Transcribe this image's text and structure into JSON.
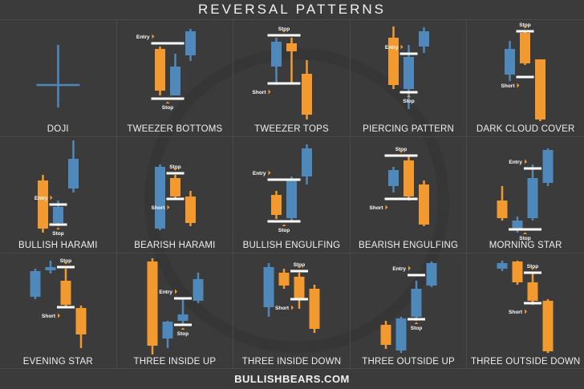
{
  "title": "REVERSAL PATTERNS",
  "footer": "BULLISHBEARS.COM",
  "colors": {
    "orange": "#f29a30",
    "blue": "#4f88bb",
    "line": "#ffffff",
    "arrow": "#f29a30"
  },
  "panels": [
    {
      "name": "DOJI",
      "doji": true,
      "candles": [
        {
          "color": "blue",
          "high": 107,
          "top": 57,
          "bottom": 57,
          "low": 29
        }
      ],
      "levels": []
    },
    {
      "name": "TWEEZER BOTTOMS",
      "candles": [
        {
          "color": "orange",
          "high": 105,
          "top": 102,
          "bottom": 50,
          "low": 44
        },
        {
          "color": "blue",
          "high": 96,
          "top": 80,
          "bottom": 44,
          "low": 44
        },
        {
          "color": "blue",
          "high": 127,
          "top": 124,
          "bottom": 94,
          "low": 87
        }
      ],
      "levels": [
        {
          "price": 109,
          "from": 0,
          "to": 1,
          "label": "Entry",
          "pos": "above"
        },
        {
          "price": 40,
          "from": 0,
          "to": 1,
          "label": "Stop",
          "pos": "below"
        }
      ]
    },
    {
      "name": "TWEEZER TOPS",
      "candles": [
        {
          "color": "blue",
          "high": 116,
          "top": 111,
          "bottom": 80,
          "low": 57
        },
        {
          "color": "orange",
          "high": 116,
          "top": 109,
          "bottom": 99,
          "low": 59
        },
        {
          "color": "orange",
          "high": 88,
          "top": 71,
          "bottom": 20,
          "low": 14
        }
      ],
      "levels": [
        {
          "price": 119,
          "from": 0,
          "to": 1,
          "label": "Stop",
          "pos": "above"
        },
        {
          "price": 59,
          "from": 0,
          "to": 1,
          "label": "Short",
          "pos": "below"
        }
      ]
    },
    {
      "name": "PIERCING PATTERN",
      "candles": [
        {
          "color": "orange",
          "high": 130,
          "top": 116,
          "bottom": 57,
          "low": 52
        },
        {
          "color": "blue",
          "high": 107,
          "top": 92,
          "bottom": 52,
          "low": 27
        },
        {
          "color": "blue",
          "high": 129,
          "top": 124,
          "bottom": 105,
          "low": 97
        }
      ],
      "levels": [
        {
          "price": 96,
          "from": 1,
          "to": 1,
          "label": "Entry",
          "pos": "above"
        },
        {
          "price": 48,
          "from": 1,
          "to": 1,
          "label": "Stop",
          "pos": "below"
        }
      ]
    },
    {
      "name": "DARK CLOUD COVER",
      "candles": [
        {
          "color": "blue",
          "high": 112,
          "top": 102,
          "bottom": 70,
          "low": 62
        },
        {
          "color": "orange",
          "high": 125,
          "top": 122,
          "bottom": 84,
          "low": 82
        },
        {
          "color": "orange",
          "high": 89,
          "top": 89,
          "bottom": 14,
          "low": 12
        }
      ],
      "levels": [
        {
          "price": 124,
          "from": 1,
          "to": 1,
          "label": "Stop",
          "pos": "above"
        },
        {
          "price": 67,
          "from": 1,
          "to": 1,
          "label": "Short",
          "pos": "below"
        }
      ]
    },
    {
      "name": "BULLISH HARAMI",
      "candles": [
        {
          "color": "orange",
          "high": 90,
          "top": 83,
          "bottom": 23,
          "low": 18
        },
        {
          "color": "blue",
          "high": 58,
          "top": 50,
          "bottom": 30,
          "low": 26
        },
        {
          "color": "blue",
          "high": 133,
          "top": 110,
          "bottom": 73,
          "low": 68
        }
      ],
      "levels": [
        {
          "price": 53,
          "from": 1,
          "to": 1,
          "label": "Entry",
          "pos": "above"
        },
        {
          "price": 28,
          "from": 1,
          "to": 1,
          "label": "Stop",
          "pos": "below"
        }
      ]
    },
    {
      "name": "BEARISH HARAMI",
      "candles": [
        {
          "color": "blue",
          "high": 103,
          "top": 100,
          "bottom": 23,
          "low": 21
        },
        {
          "color": "orange",
          "high": 90,
          "top": 86,
          "bottom": 63,
          "low": 60
        },
        {
          "color": "orange",
          "high": 70,
          "top": 63,
          "bottom": 30,
          "low": 26
        }
      ],
      "levels": [
        {
          "price": 92,
          "from": 1,
          "to": 1,
          "label": "Stop",
          "pos": "above"
        },
        {
          "price": 60,
          "from": 1,
          "to": 1,
          "label": "Short",
          "pos": "below"
        }
      ]
    },
    {
      "name": "BULLISH ENGULFING",
      "candles": [
        {
          "color": "orange",
          "high": 70,
          "top": 65,
          "bottom": 40,
          "low": 35
        },
        {
          "color": "blue",
          "high": 88,
          "top": 83,
          "bottom": 36,
          "low": 33
        },
        {
          "color": "blue",
          "high": 128,
          "top": 123,
          "bottom": 88,
          "low": 78
        }
      ],
      "levels": [
        {
          "price": 84,
          "from": 0,
          "to": 1,
          "label": "Entry",
          "pos": "above"
        },
        {
          "price": 32,
          "from": 0,
          "to": 1,
          "label": "Stop",
          "pos": "below"
        }
      ]
    },
    {
      "name": "BEARISH ENGULFING",
      "candles": [
        {
          "color": "blue",
          "high": 100,
          "top": 96,
          "bottom": 76,
          "low": 68
        },
        {
          "color": "orange",
          "high": 113,
          "top": 108,
          "bottom": 63,
          "low": 58
        },
        {
          "color": "orange",
          "high": 83,
          "top": 78,
          "bottom": 28,
          "low": 26
        }
      ],
      "levels": [
        {
          "price": 114,
          "from": 0,
          "to": 1,
          "label": "Stop",
          "pos": "above"
        },
        {
          "price": 60,
          "from": 0,
          "to": 1,
          "label": "Short",
          "pos": "below"
        }
      ]
    },
    {
      "name": "MORNING STAR",
      "candles": [
        {
          "color": "orange",
          "high": 76,
          "top": 58,
          "bottom": 36,
          "low": 33
        },
        {
          "color": "blue",
          "high": 38,
          "top": 33,
          "bottom": 23,
          "low": 18
        },
        {
          "color": "blue",
          "high": 103,
          "top": 86,
          "bottom": 36,
          "low": 33
        },
        {
          "color": "blue",
          "high": 123,
          "top": 121,
          "bottom": 80,
          "low": 76
        }
      ],
      "levels": [
        {
          "price": 98,
          "from": 2,
          "to": 2,
          "label": "Entry",
          "pos": "above"
        },
        {
          "price": 22,
          "from": 1,
          "to": 2,
          "label": "Stop",
          "pos": "below"
        }
      ]
    },
    {
      "name": "EVENING STAR",
      "candles": [
        {
          "color": "blue",
          "high": 118,
          "top": 115,
          "bottom": 83,
          "low": 80
        },
        {
          "color": "blue",
          "high": 128,
          "top": 120,
          "bottom": 116,
          "low": 112
        },
        {
          "color": "orange",
          "high": 118,
          "top": 103,
          "bottom": 73,
          "low": 70
        },
        {
          "color": "orange",
          "high": 72,
          "top": 69,
          "bottom": 36,
          "low": 19
        }
      ],
      "levels": [
        {
          "price": 120,
          "from": 2,
          "to": 2,
          "label": "Stop",
          "pos": "above"
        },
        {
          "price": 70,
          "from": 2,
          "to": 2,
          "label": "Short",
          "pos": "below"
        }
      ]
    },
    {
      "name": "THREE INSIDE UP",
      "candles": [
        {
          "color": "orange",
          "high": 131,
          "top": 127,
          "bottom": 22,
          "low": 11
        },
        {
          "color": "blue",
          "high": 53,
          "top": 52,
          "bottom": 31,
          "low": 19
        },
        {
          "color": "blue",
          "high": 81,
          "top": 61,
          "bottom": 53,
          "low": 49
        },
        {
          "color": "blue",
          "high": 113,
          "top": 105,
          "bottom": 78,
          "low": 75
        }
      ],
      "levels": [
        {
          "price": 81,
          "from": 2,
          "to": 2,
          "label": "Entry",
          "pos": "above"
        },
        {
          "price": 48,
          "from": 2,
          "to": 2,
          "label": "Stop",
          "pos": "below"
        }
      ]
    },
    {
      "name": "THREE INSIDE DOWN",
      "candles": [
        {
          "color": "blue",
          "high": 125,
          "top": 120,
          "bottom": 70,
          "low": 58
        },
        {
          "color": "orange",
          "high": 118,
          "top": 113,
          "bottom": 97,
          "low": 93
        },
        {
          "color": "orange",
          "high": 113,
          "top": 108,
          "bottom": 81,
          "low": 68
        },
        {
          "color": "orange",
          "high": 98,
          "top": 93,
          "bottom": 43,
          "low": 38
        }
      ],
      "levels": [
        {
          "price": 115,
          "from": 2,
          "to": 2,
          "label": "Stop",
          "pos": "above"
        },
        {
          "price": 80,
          "from": 2,
          "to": 2,
          "label": "Short",
          "pos": "below"
        }
      ]
    },
    {
      "name": "THREE OUTSIDE UP",
      "candles": [
        {
          "color": "orange",
          "high": 53,
          "top": 48,
          "bottom": 23,
          "low": 18
        },
        {
          "color": "blue",
          "high": 58,
          "top": 56,
          "bottom": 16,
          "low": 13
        },
        {
          "color": "blue",
          "high": 103,
          "top": 93,
          "bottom": 58,
          "low": 53
        },
        {
          "color": "blue",
          "high": 127,
          "top": 125,
          "bottom": 97,
          "low": 95
        }
      ],
      "levels": [
        {
          "price": 110,
          "from": 2,
          "to": 2,
          "label": "Entry",
          "pos": "above"
        },
        {
          "price": 55,
          "from": 2,
          "to": 2,
          "label": "Stop",
          "pos": "below"
        }
      ]
    },
    {
      "name": "THREE OUTSIDE DOWN",
      "candles": [
        {
          "color": "blue",
          "high": 128,
          "top": 125,
          "bottom": 118,
          "low": 115
        },
        {
          "color": "orange",
          "high": 128,
          "top": 127,
          "bottom": 101,
          "low": 98
        },
        {
          "color": "orange",
          "high": 113,
          "top": 101,
          "bottom": 78,
          "low": 73
        },
        {
          "color": "orange",
          "high": 80,
          "top": 78,
          "bottom": 15,
          "low": 13
        }
      ],
      "levels": [
        {
          "price": 113,
          "from": 2,
          "to": 2,
          "label": "Stop",
          "pos": "above"
        },
        {
          "price": 75,
          "from": 2,
          "to": 2,
          "label": "Short",
          "pos": "below"
        }
      ]
    }
  ]
}
